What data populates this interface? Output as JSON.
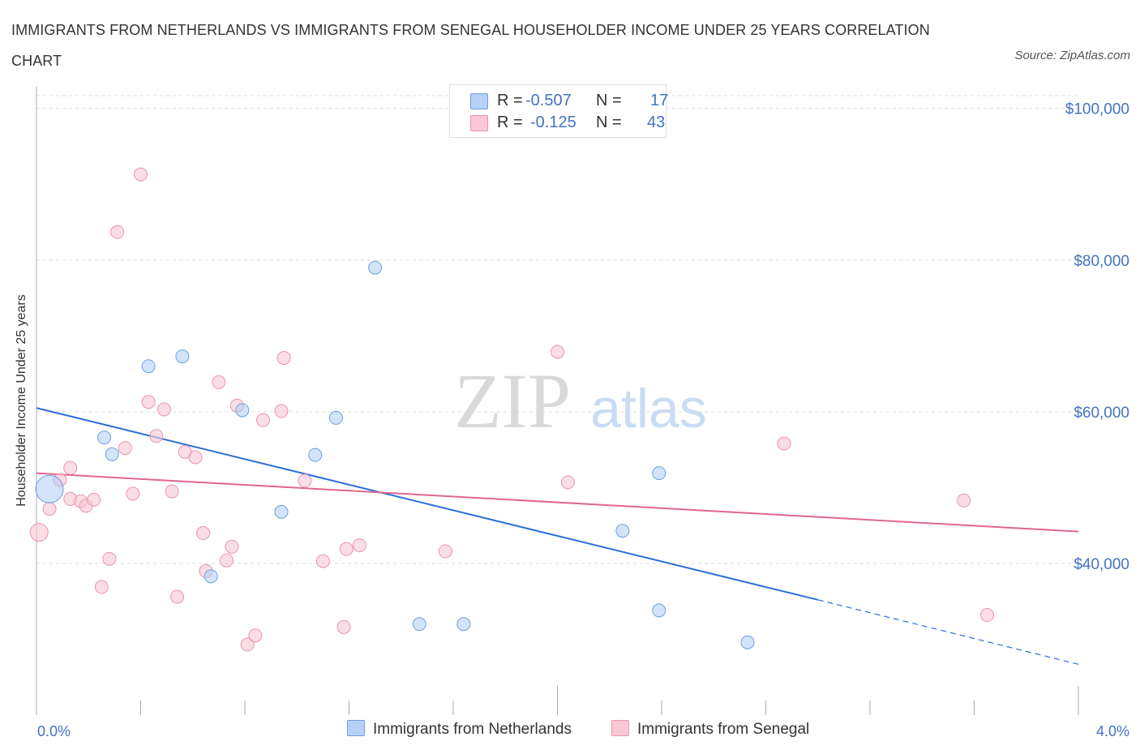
{
  "title": "IMMIGRANTS FROM NETHERLANDS VS IMMIGRANTS FROM SENEGAL HOUSEHOLDER INCOME UNDER 25 YEARS CORRELATION CHART",
  "source": "Source: ZipAtlas.com",
  "watermark": {
    "zip": "ZIP",
    "atlas": "atlas"
  },
  "colors": {
    "netherlands_fill": "#b6d1f5",
    "netherlands_stroke": "#6f9ee0",
    "netherlands_line": "#2b6fd6",
    "senegal_fill": "#f9c7d6",
    "senegal_stroke": "#ec93ad",
    "senegal_line": "#e06690",
    "tick_text": "#4472c4",
    "grid": "#dddddd"
  },
  "stats": [
    {
      "r_label": "R =",
      "r_value": "-0.507",
      "n_label": "N =",
      "n_value": "17"
    },
    {
      "r_label": "R =",
      "r_value": "-0.125",
      "n_label": "N =",
      "n_value": "43"
    }
  ],
  "legend": [
    "Immigrants from Netherlands",
    "Immigrants from Senegal"
  ],
  "chart_data": {
    "type": "scatter",
    "title": "IMMIGRANTS FROM NETHERLANDS VS IMMIGRANTS FROM SENEGAL HOUSEHOLDER INCOME UNDER 25 YEARS CORRELATION CHART",
    "xlabel": "",
    "ylabel": "Householder Income Under 25 years",
    "xlim": [
      0,
      4.0
    ],
    "ylim": [
      20000,
      102000
    ],
    "x_tick_labels": [
      "0.0%",
      "4.0%"
    ],
    "y_ticks": [
      40000,
      60000,
      80000,
      100000
    ],
    "y_tick_labels": [
      "$40,000",
      "$60,000",
      "$80,000",
      "$100,000"
    ],
    "grid": true,
    "legend_position": "bottom",
    "series": [
      {
        "name": "Immigrants from Netherlands",
        "points": [
          [
            0.05,
            49800
          ],
          [
            0.26,
            56600
          ],
          [
            0.29,
            54400
          ],
          [
            0.43,
            66000
          ],
          [
            0.56,
            67300
          ],
          [
            0.67,
            38300
          ],
          [
            0.79,
            60200
          ],
          [
            0.94,
            46800
          ],
          [
            1.07,
            54300
          ],
          [
            1.15,
            59200
          ],
          [
            1.3,
            79000
          ],
          [
            1.47,
            32000
          ],
          [
            1.64,
            32000
          ],
          [
            2.25,
            44300
          ],
          [
            2.39,
            51900
          ],
          [
            2.39,
            33800
          ],
          [
            2.73,
            29600
          ]
        ],
        "trend": {
          "x1": 0.0,
          "y1": 60500,
          "x2": 3.0,
          "y2": 35200,
          "dashed_to_x": 4.0,
          "dashed_to_y": 26700
        }
      },
      {
        "name": "Immigrants from Senegal",
        "points": [
          [
            0.01,
            44100
          ],
          [
            0.05,
            47200
          ],
          [
            0.09,
            51000
          ],
          [
            0.13,
            48500
          ],
          [
            0.13,
            52600
          ],
          [
            0.17,
            48200
          ],
          [
            0.19,
            47600
          ],
          [
            0.22,
            48400
          ],
          [
            0.25,
            36900
          ],
          [
            0.28,
            40600
          ],
          [
            0.31,
            83700
          ],
          [
            0.34,
            55200
          ],
          [
            0.37,
            49200
          ],
          [
            0.4,
            91300
          ],
          [
            0.43,
            61300
          ],
          [
            0.46,
            56800
          ],
          [
            0.49,
            60300
          ],
          [
            0.52,
            49500
          ],
          [
            0.54,
            35600
          ],
          [
            0.57,
            54700
          ],
          [
            0.61,
            54000
          ],
          [
            0.64,
            44000
          ],
          [
            0.65,
            39000
          ],
          [
            0.7,
            63900
          ],
          [
            0.73,
            40400
          ],
          [
            0.75,
            42200
          ],
          [
            0.77,
            60800
          ],
          [
            0.81,
            29300
          ],
          [
            0.84,
            30500
          ],
          [
            0.87,
            58900
          ],
          [
            0.94,
            60100
          ],
          [
            0.95,
            67100
          ],
          [
            1.03,
            50900
          ],
          [
            1.1,
            40300
          ],
          [
            1.18,
            31600
          ],
          [
            1.19,
            41900
          ],
          [
            1.24,
            42400
          ],
          [
            1.57,
            41600
          ],
          [
            2.04,
            50700
          ],
          [
            2.0,
            67900
          ],
          [
            2.87,
            55800
          ],
          [
            3.56,
            48300
          ],
          [
            3.65,
            33200
          ]
        ],
        "trend": {
          "x1": 0.0,
          "y1": 51900,
          "x2": 4.0,
          "y2": 44200
        }
      }
    ]
  }
}
